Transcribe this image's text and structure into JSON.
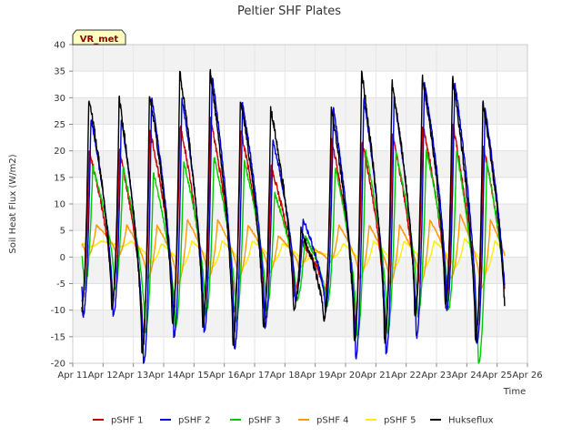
{
  "chart_data": {
    "type": "line",
    "title": "Peltier SHF Plates",
    "xlabel": "Time",
    "ylabel": "Soil Heat Flux (W/m2)",
    "ylim": [
      -20,
      40
    ],
    "yticks": [
      -20,
      -15,
      -10,
      -5,
      0,
      5,
      10,
      15,
      20,
      25,
      30,
      35,
      40
    ],
    "xlim": [
      11,
      26
    ],
    "xticks": [
      {
        "value": 11,
        "label": "Apr 11"
      },
      {
        "value": 12,
        "label": "Apr 12"
      },
      {
        "value": 13,
        "label": "Apr 13"
      },
      {
        "value": 14,
        "label": "Apr 14"
      },
      {
        "value": 15,
        "label": "Apr 15"
      },
      {
        "value": 16,
        "label": "Apr 16"
      },
      {
        "value": 17,
        "label": "Apr 17"
      },
      {
        "value": 18,
        "label": "Apr 18"
      },
      {
        "value": 19,
        "label": "Apr 19"
      },
      {
        "value": 20,
        "label": "Apr 20"
      },
      {
        "value": 21,
        "label": "Apr 21"
      },
      {
        "value": 22,
        "label": "Apr 22"
      },
      {
        "value": 23,
        "label": "Apr 23"
      },
      {
        "value": 24,
        "label": "Apr 24"
      },
      {
        "value": 25,
        "label": "Apr 25"
      },
      {
        "value": 26,
        "label": "Apr 26"
      }
    ],
    "badge": "VR_met",
    "x_start": 11.3,
    "x_end": 25.25,
    "days": [
      12,
      13,
      14,
      15,
      16,
      17,
      18,
      19,
      20,
      21,
      22,
      23,
      24,
      25
    ],
    "daily_max": [
      [
        20,
        24,
        25,
        26,
        24,
        17,
        3,
        22,
        22,
        23,
        25,
        25,
        21,
        20
      ],
      [
        26,
        30,
        30,
        34,
        29,
        22,
        7,
        28,
        30,
        30,
        33,
        33,
        28,
        24
      ],
      [
        17,
        16,
        18,
        19,
        18,
        12,
        4,
        17,
        20,
        20,
        20,
        20,
        18,
        17
      ],
      [
        6,
        6,
        7,
        7,
        6,
        4,
        2,
        6,
        6,
        6,
        7,
        8,
        7,
        6
      ],
      [
        3,
        2.5,
        3,
        3,
        3,
        2.5,
        1,
        2.5,
        3,
        3,
        3,
        3.5,
        3,
        2.5
      ],
      [
        30,
        31,
        35,
        35,
        30,
        28,
        5,
        28,
        35,
        33,
        34,
        34,
        29,
        28
      ]
    ],
    "daily_min": [
      [
        -8,
        -14,
        -9,
        -11,
        -10,
        -10,
        -7,
        -7,
        -12,
        -13,
        -10,
        -9,
        -14,
        -13
      ],
      [
        -11,
        -20,
        -15,
        -14,
        -17,
        -13,
        -8,
        -10,
        -19,
        -18,
        -15,
        -10,
        -16,
        -18
      ],
      [
        -6,
        -14,
        -13,
        -11,
        -12,
        -10,
        -8,
        -9,
        -15,
        -14,
        -11,
        -10,
        -20,
        -19
      ],
      [
        0,
        -4,
        -5,
        -4,
        -4,
        -3,
        -2,
        -1,
        -4,
        -5,
        -5,
        -4,
        -6,
        -6
      ],
      [
        2,
        -1,
        -2,
        -2,
        -2,
        -1,
        -1,
        0,
        -2,
        -2,
        -2,
        -2,
        -3,
        -3
      ],
      [
        -10,
        -18,
        -13,
        -13,
        -16,
        -13,
        -10,
        -12,
        -16,
        -16,
        -11,
        -9,
        -16,
        -16
      ]
    ],
    "series": [
      {
        "name": "pSHF 1",
        "color": "#cc0000",
        "peak_phase": 0.54,
        "trough_phase": 0.3,
        "noise": 0.6,
        "width": 1.4
      },
      {
        "name": "pSHF 2",
        "color": "#0000dd",
        "peak_phase": 0.6,
        "trough_phase": 0.33,
        "noise": 0.5,
        "width": 1.4
      },
      {
        "name": "pSHF 3",
        "color": "#00cc00",
        "peak_phase": 0.66,
        "trough_phase": 0.38,
        "noise": 0.4,
        "width": 1.4
      },
      {
        "name": "pSHF 4",
        "color": "#ff9900",
        "peak_phase": 0.78,
        "trough_phase": 0.45,
        "noise": 0.15,
        "width": 1.4
      },
      {
        "name": "pSHF 5",
        "color": "#ffee00",
        "peak_phase": 0.92,
        "trough_phase": 0.55,
        "noise": 0.1,
        "width": 1.4
      },
      {
        "name": "Hukseflux",
        "color": "#000000",
        "peak_phase": 0.53,
        "trough_phase": 0.28,
        "noise": 0.8,
        "width": 1.4
      }
    ]
  }
}
